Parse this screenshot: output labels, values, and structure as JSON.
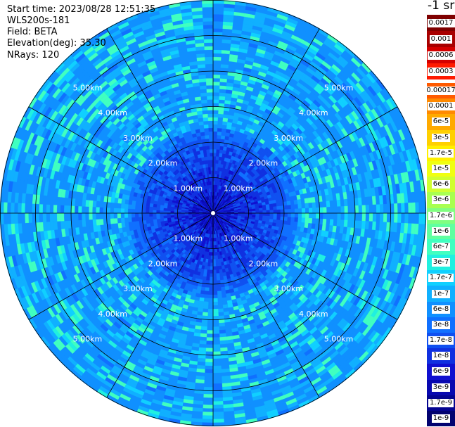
{
  "header": {
    "start_time": "Start time: 2023/08/28 12:51:35",
    "instrument": "WLS200s-181",
    "field": "Field: BETA",
    "elevation": "Elevation(deg): 35.30",
    "nrays": "NRays: 120"
  },
  "colorbar": {
    "unit": "-1 sr",
    "upper": [
      {
        "label": "0.0017",
        "color": "#7f0000"
      },
      {
        "label": "0.001",
        "color": "#a80000"
      },
      {
        "label": "0.0006",
        "color": "#d40000"
      },
      {
        "label": "0.0003",
        "color": "#ff1a00"
      }
    ],
    "lower": [
      {
        "label": "0.00017",
        "color": "#ff5a00"
      },
      {
        "label": "0.0001",
        "color": "#ff8a00"
      },
      {
        "label": "6e-5",
        "color": "#ffaa00"
      },
      {
        "label": "3e-5",
        "color": "#ffd000"
      },
      {
        "label": "1.7e-5",
        "color": "#fff000"
      },
      {
        "label": "1e-5",
        "color": "#f0ff10"
      },
      {
        "label": "6e-6",
        "color": "#d0ff30"
      },
      {
        "label": "3e-6",
        "color": "#a8ff50"
      },
      {
        "label": "1.7e-6",
        "color": "#80ff80"
      },
      {
        "label": "1e-6",
        "color": "#60ffa0"
      },
      {
        "label": "6e-7",
        "color": "#40ffc0"
      },
      {
        "label": "3e-7",
        "color": "#20f0e0"
      },
      {
        "label": "1.7e-7",
        "color": "#10d0ff"
      },
      {
        "label": "1e-7",
        "color": "#10b0ff"
      },
      {
        "label": "6e-8",
        "color": "#1090ff"
      },
      {
        "label": "3e-8",
        "color": "#1070ff"
      },
      {
        "label": "1.7e-8",
        "color": "#1050f0"
      },
      {
        "label": "1e-8",
        "color": "#1030e0"
      },
      {
        "label": "6e-9",
        "color": "#1010d0"
      },
      {
        "label": "3e-9",
        "color": "#0808b0"
      },
      {
        "label": "1.7e-9",
        "color": "#040490"
      },
      {
        "label": "1e-9",
        "color": "#020270"
      }
    ]
  },
  "chart_data": {
    "type": "heatmap",
    "projection": "polar-ppi",
    "field": "BETA",
    "unit": "sr-1",
    "elevation_deg": 35.3,
    "n_rays": 120,
    "range_rings_km": [
      1,
      2,
      3,
      4,
      5
    ],
    "range_ring_labels": [
      "1.00km",
      "2.00km",
      "3.00km",
      "4.00km",
      "5.00km"
    ],
    "max_range_km": 6,
    "spoke_interval_deg": 30,
    "typical_value_range": [
      "1e-8",
      "6e-8"
    ],
    "near_center_value_range": [
      "3e-9",
      "1.7e-8"
    ],
    "grid": true
  }
}
